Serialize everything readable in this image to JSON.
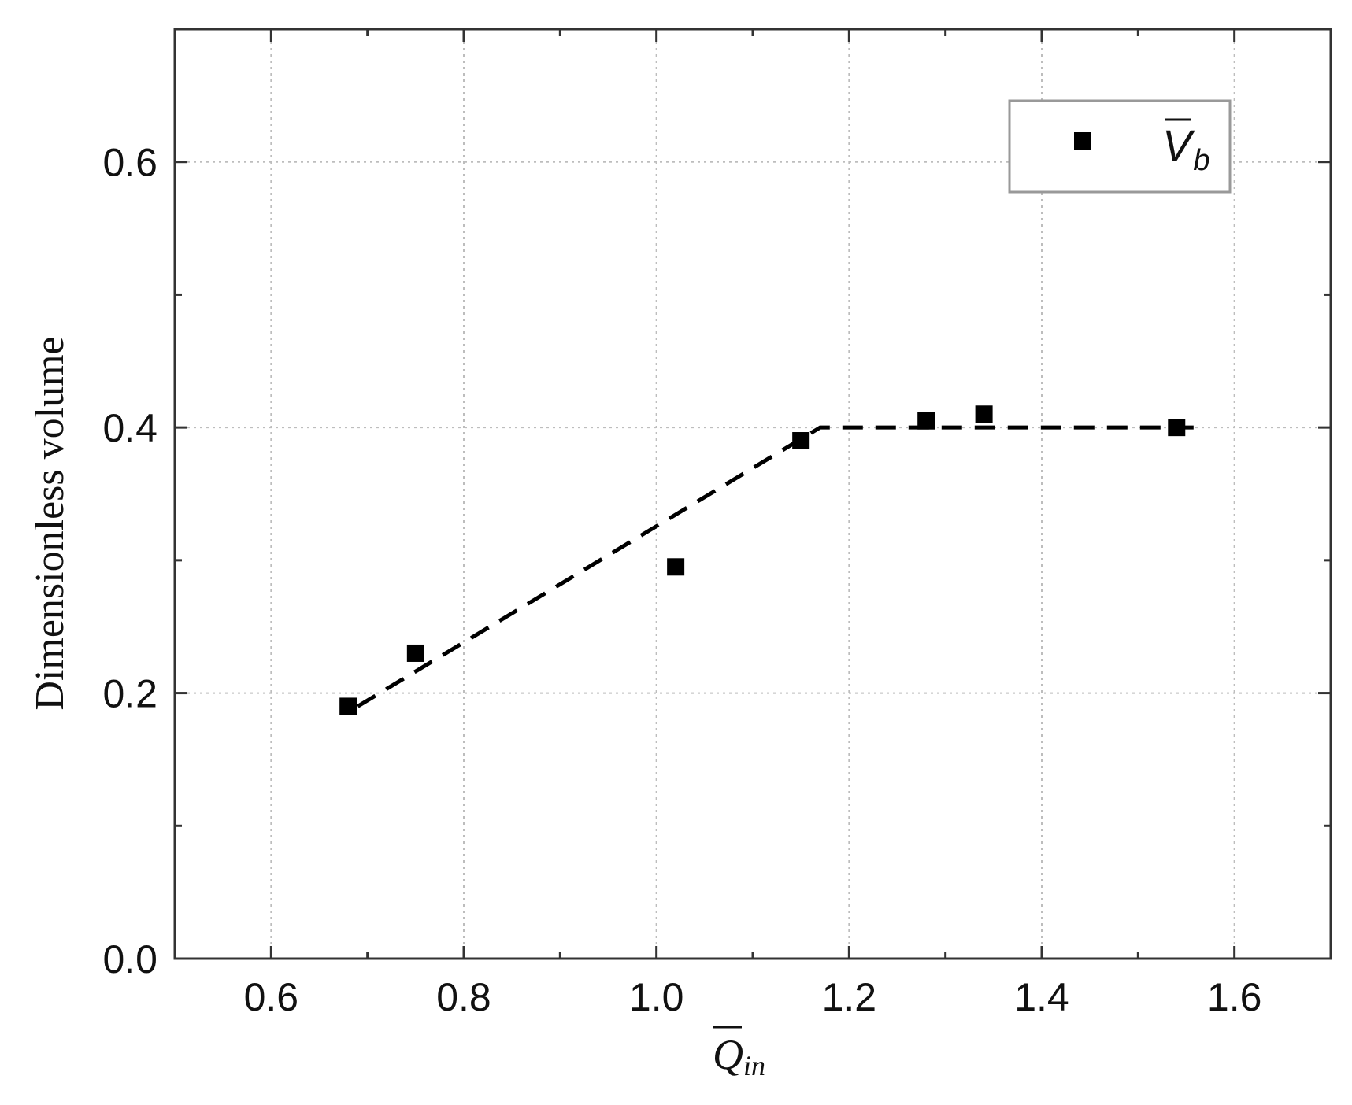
{
  "chart_data": {
    "type": "scatter",
    "xlabel": {
      "main": "Q",
      "sub": "in"
    },
    "ylabel": "Dimensionless volume",
    "xlim": [
      0.5,
      1.7
    ],
    "ylim": [
      0.0,
      0.7
    ],
    "x_ticks": [
      0.6,
      0.8,
      1.0,
      1.2,
      1.4,
      1.6
    ],
    "x_tick_labels": [
      "0.6",
      "0.8",
      "1.0",
      "1.2",
      "1.4",
      "1.6"
    ],
    "y_ticks": [
      0.0,
      0.2,
      0.4,
      0.6
    ],
    "y_tick_labels": [
      "0.0",
      "0.2",
      "0.4",
      "0.6"
    ],
    "grid": true,
    "legend_position": "top-right",
    "series": [
      {
        "name": {
          "main": "V",
          "sub": "b"
        },
        "marker": "square",
        "color": "#000000",
        "points": [
          {
            "x": 0.68,
            "y": 0.19
          },
          {
            "x": 0.75,
            "y": 0.23
          },
          {
            "x": 1.02,
            "y": 0.295
          },
          {
            "x": 1.15,
            "y": 0.39
          },
          {
            "x": 1.28,
            "y": 0.405
          },
          {
            "x": 1.34,
            "y": 0.41
          },
          {
            "x": 1.54,
            "y": 0.4
          }
        ]
      }
    ],
    "trend_line": {
      "style": "dashed",
      "color": "#000000",
      "points": [
        {
          "x": 0.69,
          "y": 0.19
        },
        {
          "x": 1.17,
          "y": 0.4
        },
        {
          "x": 1.56,
          "y": 0.4
        }
      ]
    }
  }
}
